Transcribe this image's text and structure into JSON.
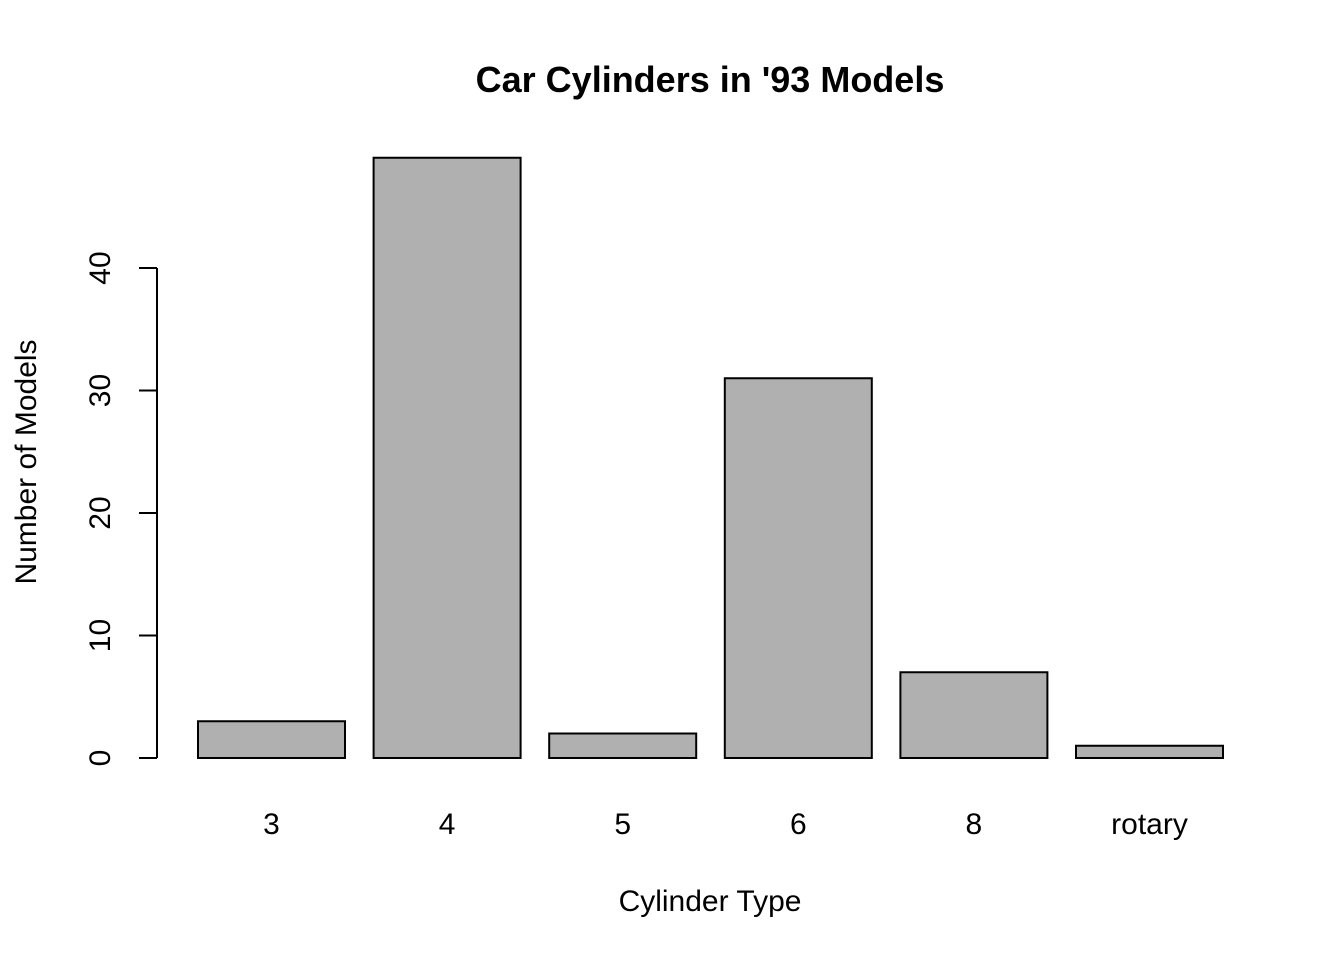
{
  "chart_data": {
    "type": "bar",
    "title": "Car Cylinders in '93 Models",
    "xlabel": "Cylinder Type",
    "ylabel": "Number of Models",
    "categories": [
      "3",
      "4",
      "5",
      "6",
      "8",
      "rotary"
    ],
    "values": [
      3,
      49,
      2,
      31,
      7,
      1
    ],
    "yticks": [
      0,
      10,
      20,
      30,
      40
    ],
    "ylim": [
      0,
      49
    ],
    "grid": false,
    "bar_color": "#b0b0b0",
    "bar_border_color": "#000000"
  }
}
